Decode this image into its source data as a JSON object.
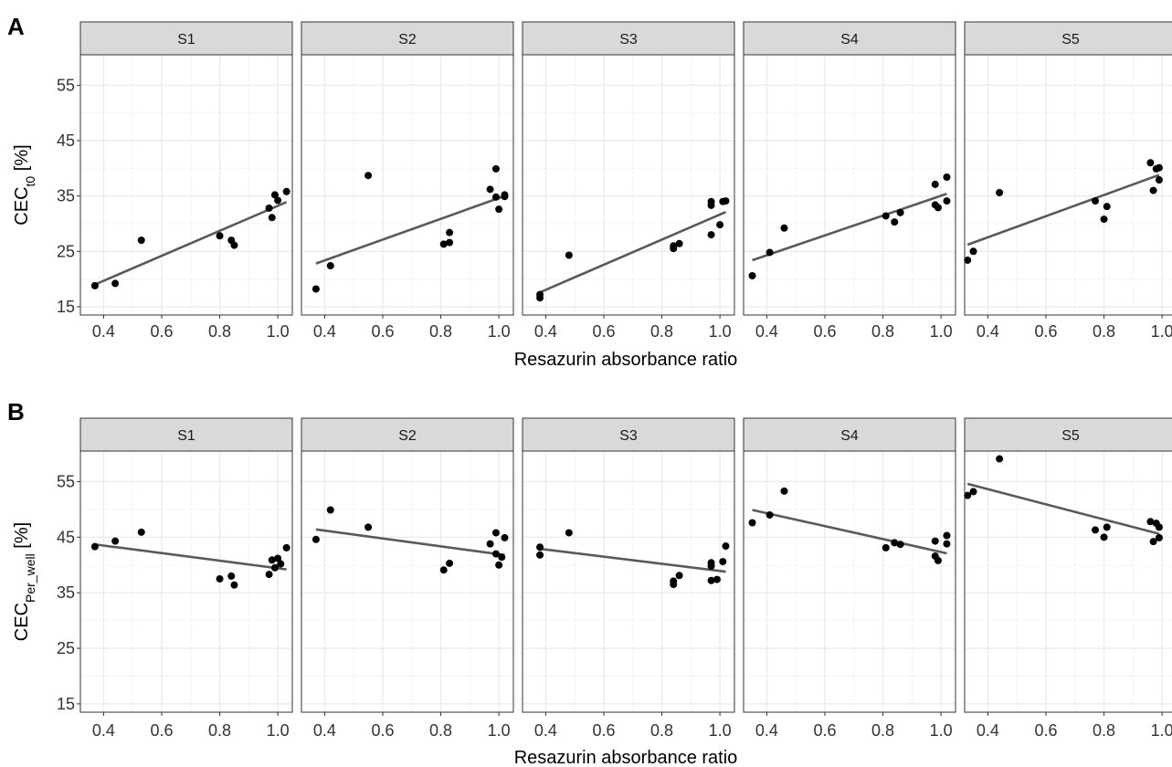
{
  "chart_data": [
    {
      "type": "scatter",
      "panel_label": "A",
      "ylabel": {
        "main": "CEC",
        "sub": "t0",
        "unit": " [%]"
      },
      "xlabel": "Resazurin absorbance ratio",
      "xlim": [
        0.32,
        1.05
      ],
      "ylim": [
        13.5,
        60.5
      ],
      "x_ticks": [
        0.4,
        0.6,
        0.8,
        1.0
      ],
      "x_tick_labels": [
        "0.4",
        "0.6",
        "0.8",
        "1.0"
      ],
      "y_ticks": [
        15,
        25,
        35,
        45,
        55
      ],
      "y_tick_labels": [
        "15",
        "25",
        "35",
        "45",
        "55"
      ],
      "grid": true,
      "facets": [
        {
          "name": "S1",
          "points": [
            [
              0.37,
              18.8
            ],
            [
              0.44,
              19.2
            ],
            [
              0.53,
              27.0
            ],
            [
              0.8,
              27.8
            ],
            [
              0.84,
              27.0
            ],
            [
              0.85,
              26.1
            ],
            [
              0.97,
              32.8
            ],
            [
              0.98,
              31.1
            ],
            [
              0.99,
              35.2
            ],
            [
              1.0,
              34.2
            ],
            [
              1.03,
              35.8
            ]
          ],
          "fit": [
            [
              0.37,
              19.0
            ],
            [
              1.03,
              33.9
            ]
          ]
        },
        {
          "name": "S2",
          "points": [
            [
              0.37,
              18.2
            ],
            [
              0.42,
              22.4
            ],
            [
              0.55,
              38.7
            ],
            [
              0.81,
              26.3
            ],
            [
              0.83,
              28.4
            ],
            [
              0.83,
              26.6
            ],
            [
              0.97,
              36.2
            ],
            [
              0.99,
              39.9
            ],
            [
              0.99,
              34.8
            ],
            [
              1.0,
              32.6
            ],
            [
              1.02,
              34.9
            ],
            [
              1.02,
              35.2
            ]
          ],
          "fit": [
            [
              0.37,
              22.8
            ],
            [
              1.02,
              35.0
            ]
          ]
        },
        {
          "name": "S3",
          "points": [
            [
              0.38,
              17.2
            ],
            [
              0.38,
              16.6
            ],
            [
              0.48,
              24.3
            ],
            [
              0.84,
              25.5
            ],
            [
              0.84,
              26.0
            ],
            [
              0.86,
              26.4
            ],
            [
              0.97,
              34.0
            ],
            [
              0.97,
              33.3
            ],
            [
              0.97,
              28.0
            ],
            [
              1.0,
              29.8
            ],
            [
              1.01,
              34.0
            ],
            [
              1.02,
              34.1
            ]
          ],
          "fit": [
            [
              0.38,
              17.6
            ],
            [
              1.02,
              32.1
            ]
          ]
        },
        {
          "name": "S4",
          "points": [
            [
              0.35,
              20.6
            ],
            [
              0.41,
              24.8
            ],
            [
              0.46,
              29.2
            ],
            [
              0.81,
              31.4
            ],
            [
              0.84,
              30.3
            ],
            [
              0.86,
              32.0
            ],
            [
              0.98,
              33.4
            ],
            [
              0.98,
              37.1
            ],
            [
              0.99,
              32.9
            ],
            [
              1.02,
              38.4
            ],
            [
              1.02,
              34.1
            ]
          ],
          "fit": [
            [
              0.35,
              23.4
            ],
            [
              1.02,
              35.4
            ]
          ]
        },
        {
          "name": "S5",
          "points": [
            [
              0.33,
              23.4
            ],
            [
              0.35,
              25.0
            ],
            [
              0.44,
              35.6
            ],
            [
              0.77,
              34.1
            ],
            [
              0.8,
              30.8
            ],
            [
              0.81,
              33.1
            ],
            [
              0.96,
              41.0
            ],
            [
              0.97,
              36.0
            ],
            [
              0.98,
              39.9
            ],
            [
              0.99,
              40.1
            ],
            [
              0.99,
              37.9
            ]
          ],
          "fit": [
            [
              0.33,
              26.2
            ],
            [
              0.99,
              38.8
            ]
          ]
        }
      ]
    },
    {
      "type": "scatter",
      "panel_label": "B",
      "ylabel": {
        "main": "CEC",
        "sub": "Per_well",
        "unit": " [%]"
      },
      "xlabel": "Resazurin absorbance ratio",
      "xlim": [
        0.32,
        1.05
      ],
      "ylim": [
        13.5,
        60.5
      ],
      "x_ticks": [
        0.4,
        0.6,
        0.8,
        1.0
      ],
      "x_tick_labels": [
        "0.4",
        "0.6",
        "0.8",
        "1.0"
      ],
      "y_ticks": [
        15,
        25,
        35,
        45,
        55
      ],
      "y_tick_labels": [
        "15",
        "25",
        "35",
        "45",
        "55"
      ],
      "grid": true,
      "facets": [
        {
          "name": "S1",
          "points": [
            [
              0.37,
              43.3
            ],
            [
              0.44,
              44.3
            ],
            [
              0.53,
              45.9
            ],
            [
              0.8,
              37.5
            ],
            [
              0.84,
              38.0
            ],
            [
              0.85,
              36.4
            ],
            [
              0.97,
              38.3
            ],
            [
              0.98,
              40.9
            ],
            [
              0.99,
              39.5
            ],
            [
              1.0,
              41.2
            ],
            [
              1.01,
              40.2
            ],
            [
              1.03,
              43.1
            ]
          ],
          "fit": [
            [
              0.37,
              43.7
            ],
            [
              1.03,
              39.2
            ]
          ]
        },
        {
          "name": "S2",
          "points": [
            [
              0.37,
              44.6
            ],
            [
              0.42,
              49.9
            ],
            [
              0.55,
              46.8
            ],
            [
              0.81,
              39.1
            ],
            [
              0.83,
              40.3
            ],
            [
              0.97,
              43.8
            ],
            [
              0.99,
              45.8
            ],
            [
              0.99,
              42.0
            ],
            [
              1.0,
              40.0
            ],
            [
              1.01,
              41.4
            ],
            [
              1.02,
              44.9
            ]
          ],
          "fit": [
            [
              0.37,
              46.4
            ],
            [
              1.02,
              41.8
            ]
          ]
        },
        {
          "name": "S3",
          "points": [
            [
              0.38,
              43.2
            ],
            [
              0.38,
              41.8
            ],
            [
              0.48,
              45.8
            ],
            [
              0.84,
              36.5
            ],
            [
              0.84,
              37.1
            ],
            [
              0.86,
              38.1
            ],
            [
              0.97,
              37.2
            ],
            [
              0.97,
              40.4
            ],
            [
              0.97,
              39.8
            ],
            [
              0.99,
              37.4
            ],
            [
              1.01,
              40.6
            ],
            [
              1.02,
              43.4
            ]
          ],
          "fit": [
            [
              0.38,
              42.9
            ],
            [
              1.02,
              38.8
            ]
          ]
        },
        {
          "name": "S4",
          "points": [
            [
              0.35,
              47.6
            ],
            [
              0.41,
              49.0
            ],
            [
              0.46,
              53.3
            ],
            [
              0.81,
              43.1
            ],
            [
              0.84,
              44.0
            ],
            [
              0.86,
              43.7
            ],
            [
              0.98,
              41.6
            ],
            [
              0.98,
              44.3
            ],
            [
              0.99,
              40.8
            ],
            [
              1.02,
              45.3
            ],
            [
              1.02,
              43.8
            ]
          ],
          "fit": [
            [
              0.35,
              49.9
            ],
            [
              1.02,
              42.1
            ]
          ]
        },
        {
          "name": "S5",
          "points": [
            [
              0.33,
              52.5
            ],
            [
              0.35,
              53.2
            ],
            [
              0.44,
              59.1
            ],
            [
              0.77,
              46.3
            ],
            [
              0.8,
              45.0
            ],
            [
              0.81,
              46.8
            ],
            [
              0.96,
              47.8
            ],
            [
              0.97,
              44.2
            ],
            [
              0.98,
              47.5
            ],
            [
              0.99,
              46.8
            ],
            [
              0.99,
              44.9
            ]
          ],
          "fit": [
            [
              0.33,
              54.6
            ],
            [
              0.99,
              45.6
            ]
          ]
        }
      ]
    }
  ],
  "colors": {
    "point": "#000000",
    "fit_line": "#595959",
    "strip_fill": "#d9d9d9",
    "grid_major": "#ebebeb",
    "grid_minor": "#f5f5f5",
    "border": "#333333",
    "background": "#ffffff"
  }
}
